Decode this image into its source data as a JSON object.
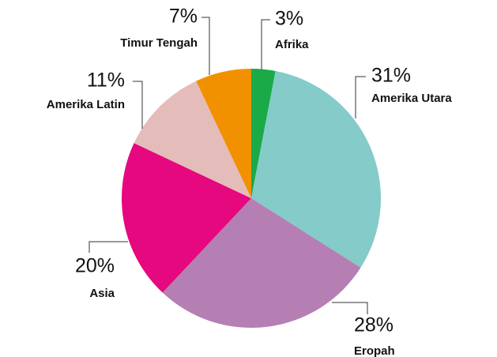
{
  "chart_data": {
    "type": "pie",
    "categories": [
      "Afrika",
      "Amerika Utara",
      "Eropah",
      "Asia",
      "Amerika Latin",
      "Timur Tengah"
    ],
    "values": [
      3,
      31,
      28,
      20,
      11,
      7
    ],
    "value_labels": [
      "3%",
      "31%",
      "28%",
      "20%",
      "11%",
      "7%"
    ],
    "colors": [
      "#1aaa48",
      "#84cbca",
      "#b57fb4",
      "#e5087e",
      "#e4bcba",
      "#f29100"
    ]
  }
}
